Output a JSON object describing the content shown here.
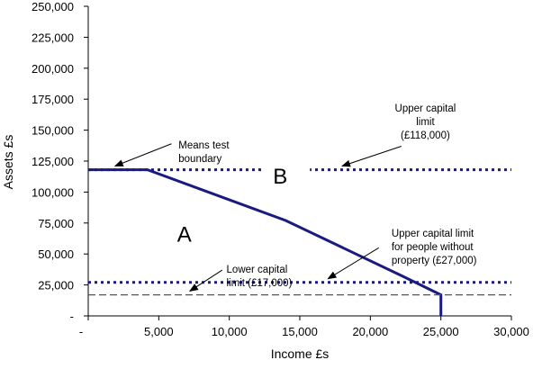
{
  "chart_data": {
    "type": "line",
    "xlabel": "Income £s",
    "ylabel": "Assets £s",
    "xlim": [
      0,
      30000
    ],
    "ylim": [
      0,
      250000
    ],
    "x_ticks": [
      0,
      5000,
      10000,
      15000,
      20000,
      25000,
      30000
    ],
    "x_tick_labels": [
      "-",
      "5,000",
      "10,000",
      "15,000",
      "20,000",
      "25,000",
      "30,000"
    ],
    "y_ticks": [
      0,
      25000,
      50000,
      75000,
      100000,
      125000,
      150000,
      175000,
      200000,
      225000,
      250000
    ],
    "y_tick_labels": [
      "-",
      "25,000",
      "50,000",
      "75,000",
      "100,000",
      "125,000",
      "150,000",
      "175,000",
      "200,000",
      "225,000",
      "250,000"
    ],
    "grid": false,
    "series": [
      {
        "style": "solid",
        "color": "#1a1a80",
        "points": [
          [
            0,
            118000
          ],
          [
            4200,
            118000
          ],
          [
            14000,
            77000
          ],
          [
            22300,
            32000
          ],
          [
            25000,
            17000
          ],
          [
            25000,
            0
          ]
        ]
      },
      {
        "style": "dotted",
        "color": "#1a1a80",
        "points": [
          [
            0,
            118000
          ],
          [
            30000,
            118000
          ]
        ]
      },
      {
        "style": "dotted",
        "color": "#1a1a80",
        "points": [
          [
            0,
            27000
          ],
          [
            30000,
            27000
          ]
        ]
      },
      {
        "style": "dashed",
        "color": "#555555",
        "points": [
          [
            0,
            17000
          ],
          [
            30000,
            17000
          ]
        ]
      }
    ],
    "annotations": [
      {
        "lines": [
          "Means test",
          "boundary"
        ],
        "text_at": [
          6400,
          135000
        ],
        "arrow_from": [
          5900,
          139000
        ],
        "arrow_to": [
          1900,
          121000
        ]
      },
      {
        "lines": [
          "Upper capital",
          "limit",
          "(£118,000)"
        ],
        "text_at": [
          23900,
          165000
        ],
        "arrow_from": [
          22200,
          137000
        ],
        "arrow_to": [
          18000,
          121000
        ]
      },
      {
        "lines": [
          "Upper capital limit",
          "for people without",
          "property (£27,000)"
        ],
        "text_at": [
          21500,
          64000
        ],
        "arrow_from": [
          20600,
          55000
        ],
        "arrow_to": [
          17000,
          30000
        ]
      },
      {
        "lines": [
          "Lower capital",
          "limit (£17,000)"
        ],
        "text_at": [
          9800,
          35000
        ],
        "arrow_from": [
          9500,
          37000
        ],
        "arrow_to": [
          7200,
          20000
        ]
      }
    ],
    "region_labels": [
      {
        "text": "B",
        "at": [
          13100,
          107000
        ]
      },
      {
        "text": "A",
        "at": [
          6300,
          60000
        ]
      }
    ],
    "colors": {
      "boundary": "#1a1a80",
      "lower_limit": "#555555",
      "axis": "#000000"
    }
  }
}
